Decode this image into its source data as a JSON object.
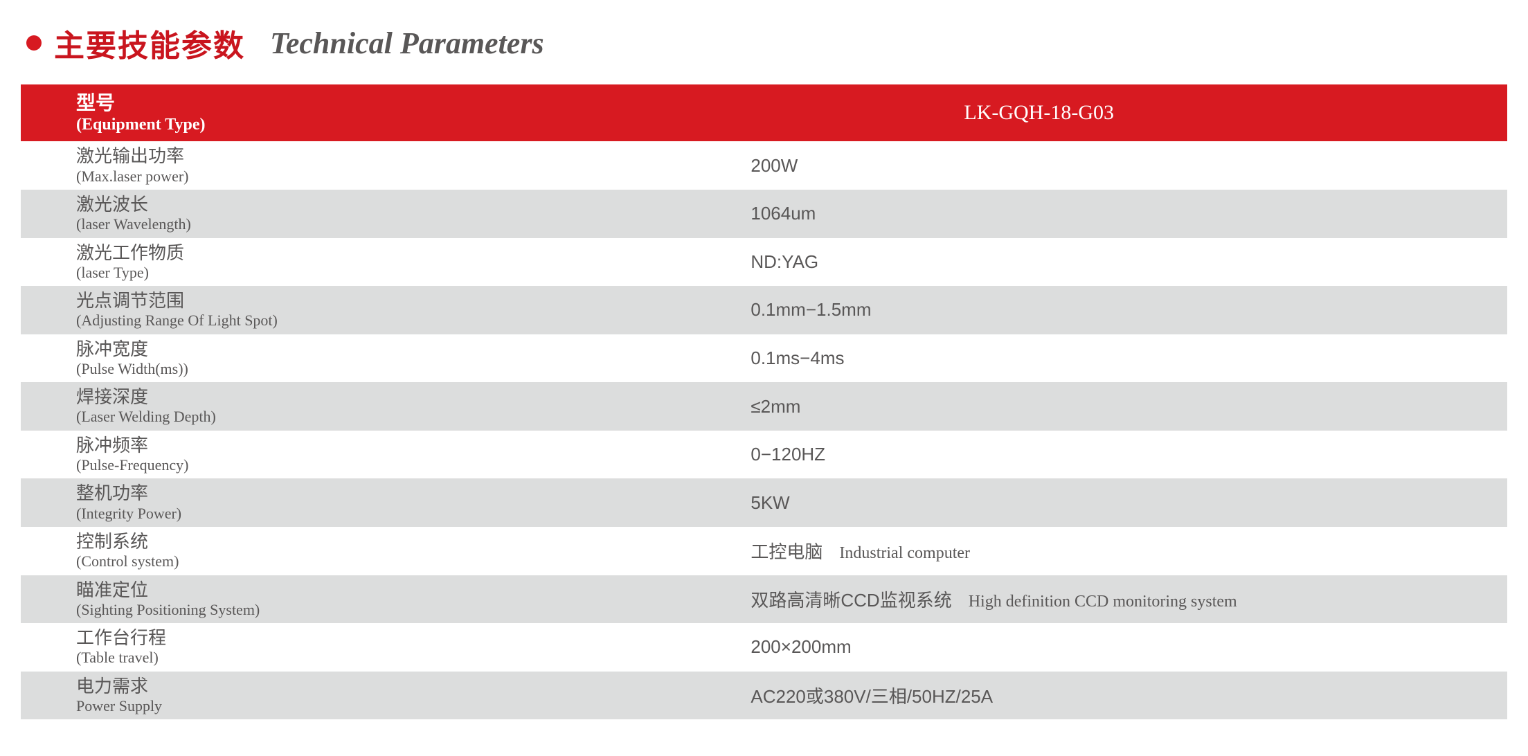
{
  "colors": {
    "accent_red": "#d71a21",
    "title_cn": "#c9151e",
    "title_en": "#595757",
    "row_odd_bg": "#ffffff",
    "row_even_bg": "#dcdddd",
    "text_body": "#595757",
    "header_text": "#ffffff"
  },
  "title": {
    "cn": "主要技能参数",
    "en": "Technical Parameters"
  },
  "header": {
    "label_cn": "型号",
    "label_en": "(Equipment Type)",
    "value": "LK-GQH-18-G03"
  },
  "rows": [
    {
      "label_cn": "激光输出功率",
      "label_en": "(Max.laser power)",
      "value": "200W",
      "value_en": ""
    },
    {
      "label_cn": "激光波长",
      "label_en": "(laser Wavelength)",
      "value": "1064um",
      "value_en": ""
    },
    {
      "label_cn": "激光工作物质",
      "label_en": "(laser Type)",
      "value": "ND:YAG",
      "value_en": ""
    },
    {
      "label_cn": "光点调节范围",
      "label_en": "(Adjusting Range Of Light Spot)",
      "value": "0.1mm−1.5mm",
      "value_en": ""
    },
    {
      "label_cn": "脉冲宽度",
      "label_en": "(Pulse Width(ms))",
      "value": "0.1ms−4ms",
      "value_en": ""
    },
    {
      "label_cn": "焊接深度",
      "label_en": "(Laser Welding Depth)",
      "value": "≤2mm",
      "value_en": ""
    },
    {
      "label_cn": "脉冲频率",
      "label_en": "(Pulse-Frequency)",
      "value": "0−120HZ",
      "value_en": ""
    },
    {
      "label_cn": "整机功率",
      "label_en": "(Integrity Power)",
      "value": "5KW",
      "value_en": ""
    },
    {
      "label_cn": "控制系统",
      "label_en": "(Control system)",
      "value": "工控电脑",
      "value_en": "Industrial computer"
    },
    {
      "label_cn": "瞄准定位",
      "label_en": "(Sighting Positioning System)",
      "value": "双路高清晰CCD监视系统",
      "value_en": "High definition CCD monitoring system"
    },
    {
      "label_cn": "工作台行程",
      "label_en": "(Table travel)",
      "value": "200×200mm",
      "value_en": ""
    },
    {
      "label_cn": "电力需求",
      "label_en": "Power Supply",
      "value": "AC220或380V/三相/50HZ/25A",
      "value_en": ""
    }
  ]
}
